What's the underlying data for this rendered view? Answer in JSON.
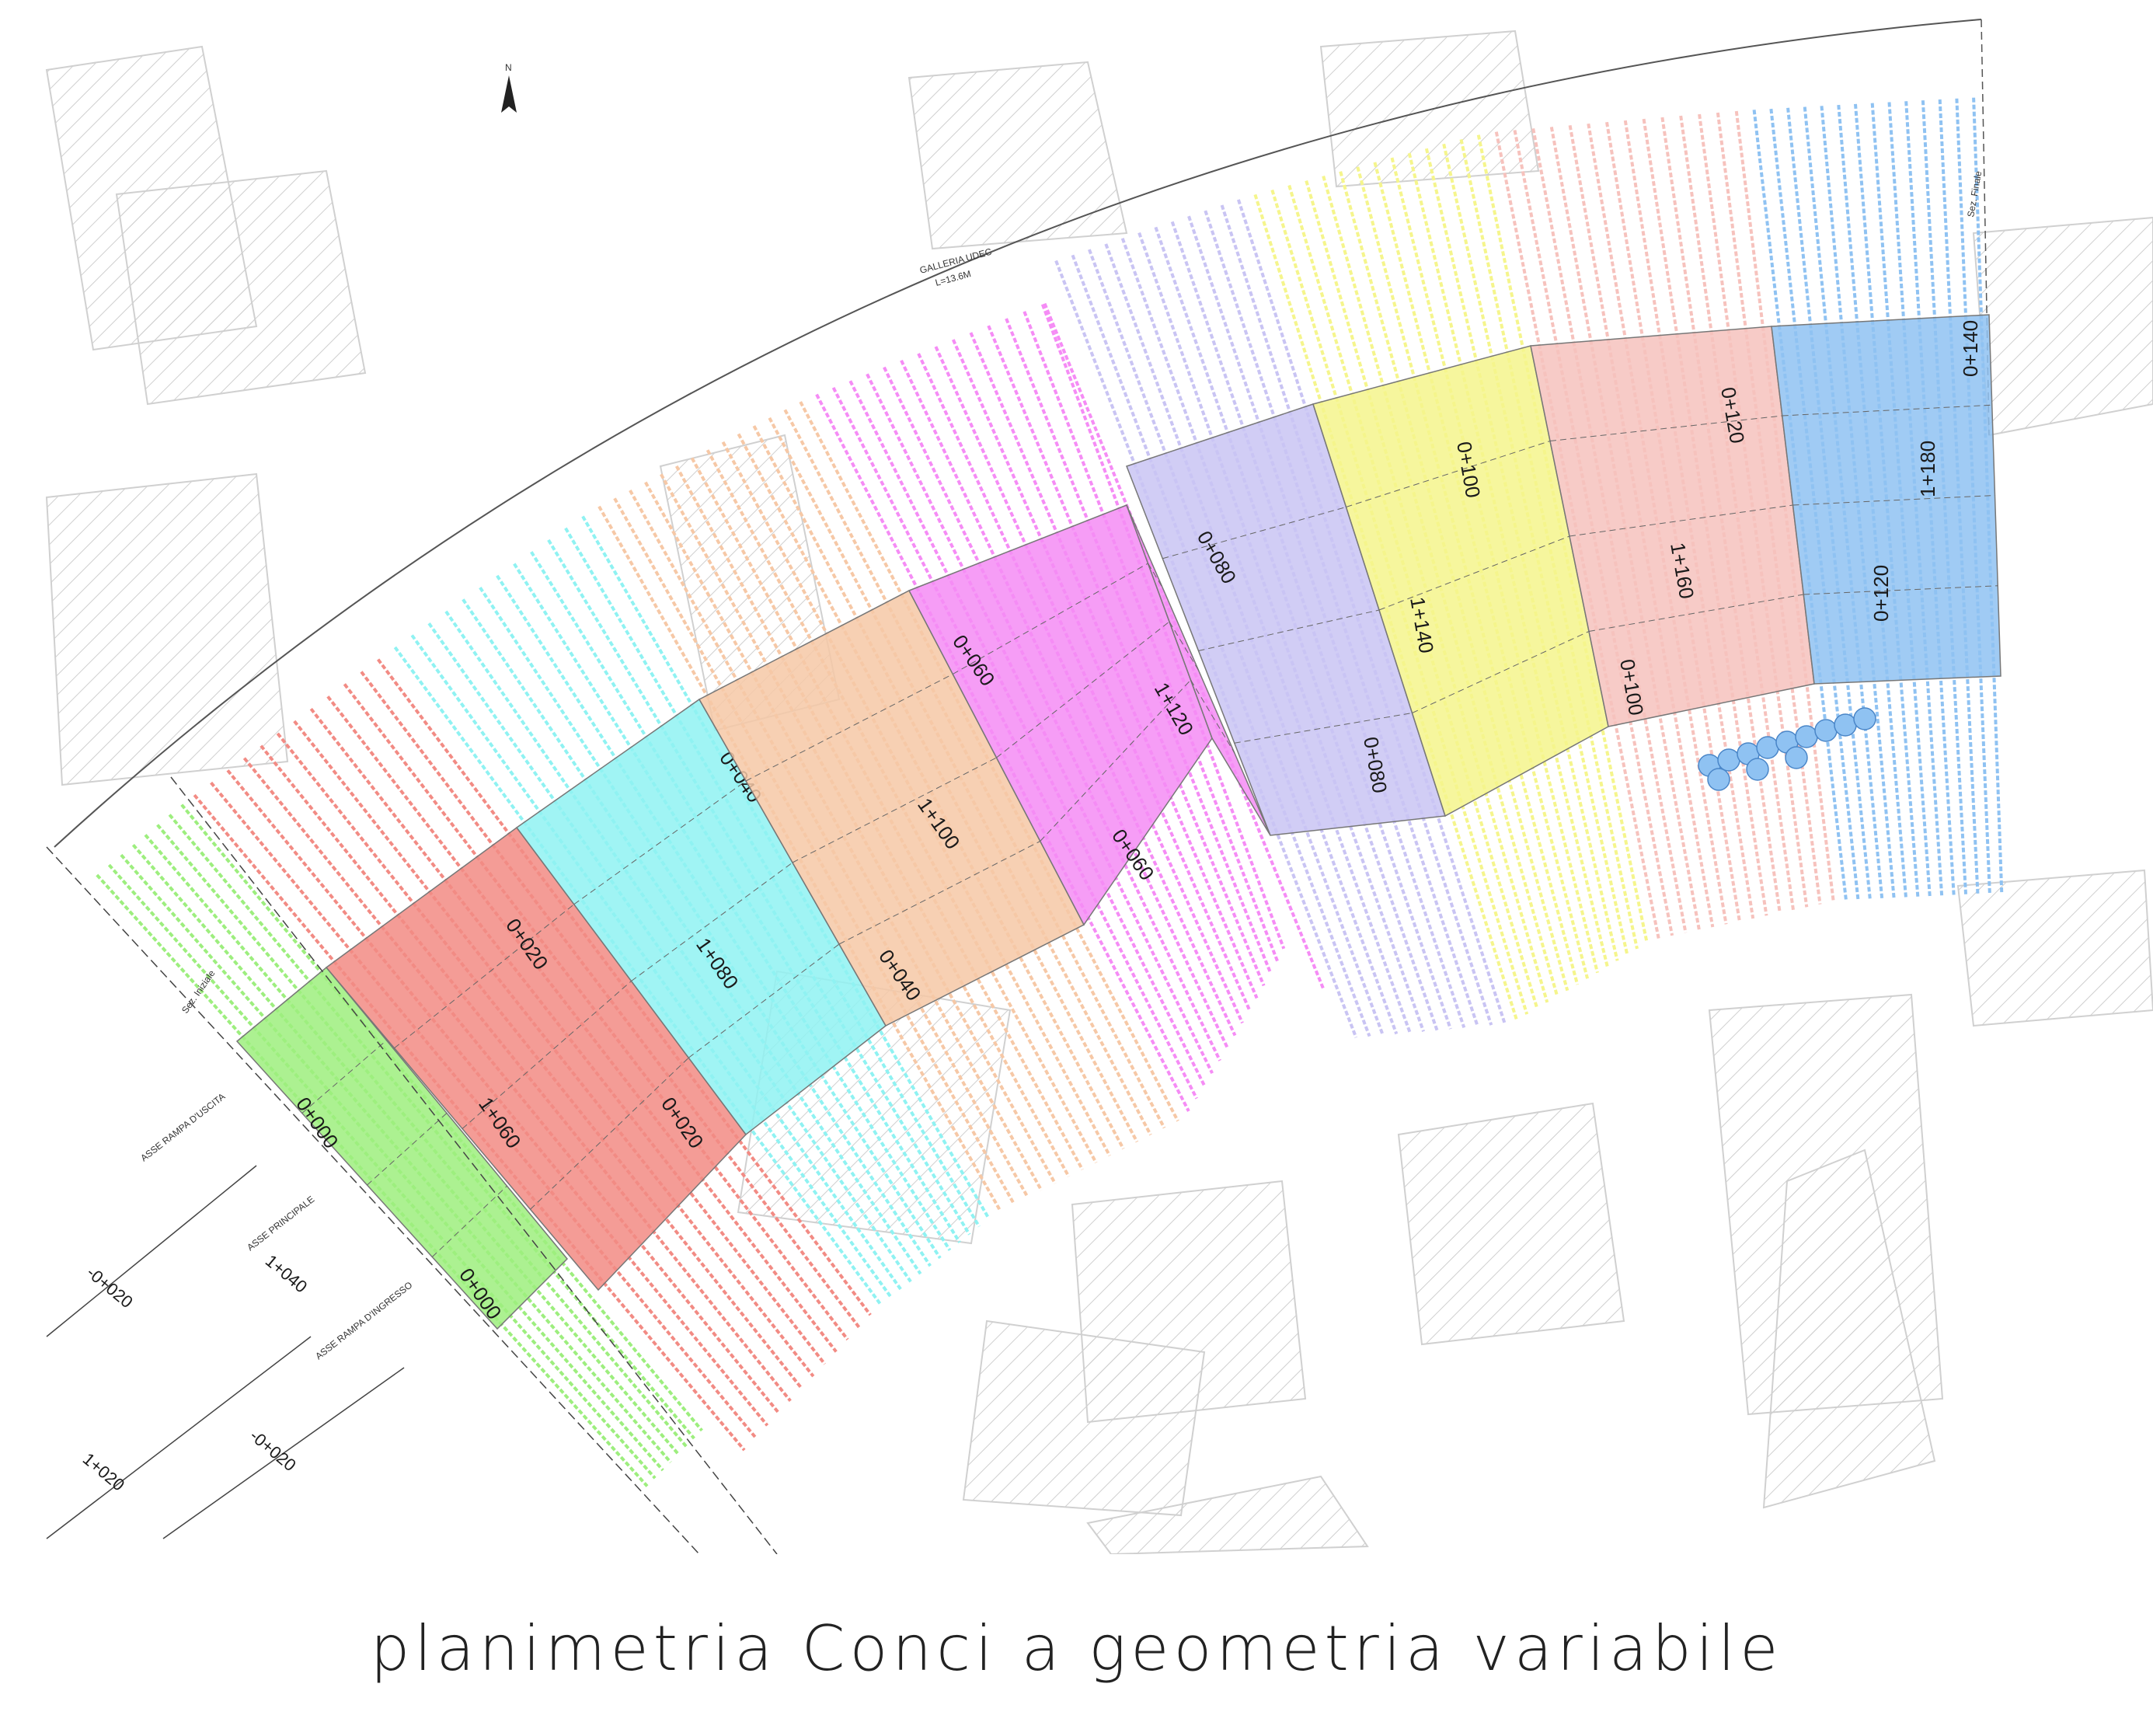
{
  "caption": "planimetria Conci a geometria variabile",
  "north_label": "N",
  "gallery_label": "GALLERIA UDEC",
  "gallery_sub": "L=13.6M",
  "axes": {
    "uscita": "ASSE RAMPA D'USCITA",
    "principale": "ASSE PRINCIPALE",
    "ingresso": "ASSE RAMPA D'INGRESSO"
  },
  "section_labels": {
    "iniziale": "Sez. Iniziale",
    "finale": "Sez. Finale"
  },
  "chainages_lower_left": [
    "-0+020",
    "1+040",
    "-0+020",
    "1+020"
  ],
  "colors": {
    "green": "#9dee7e",
    "red": "#f28b84",
    "cyan": "#8ff2f2",
    "peach": "#f6c8a6",
    "magenta": "#f58cf5",
    "lavender": "#c9c4f3",
    "yellow": "#f5f58c",
    "pink": "#f6c2bd",
    "blue": "#8fc2f2"
  },
  "segments": [
    {
      "color": "green",
      "labels": [
        "0+000",
        "0+000"
      ]
    },
    {
      "color": "red",
      "labels": [
        "0+020",
        "1+060",
        "0+020"
      ]
    },
    {
      "color": "cyan",
      "labels": [
        "0+040",
        "1+080"
      ]
    },
    {
      "color": "peach",
      "labels": [
        "1+100",
        "0+040"
      ]
    },
    {
      "color": "magenta",
      "labels": [
        "0+060",
        "0+060"
      ]
    },
    {
      "color": "magenta",
      "labels": [
        "1+120"
      ]
    },
    {
      "color": "lavender",
      "labels": [
        "0+080",
        "0+080"
      ]
    },
    {
      "color": "yellow",
      "labels": [
        "0+100",
        "1+140"
      ]
    },
    {
      "color": "pink",
      "labels": [
        "0+120",
        "1+160",
        "0+100"
      ]
    },
    {
      "color": "blue",
      "labels": [
        "0+140",
        "1+180",
        "0+120"
      ]
    }
  ]
}
